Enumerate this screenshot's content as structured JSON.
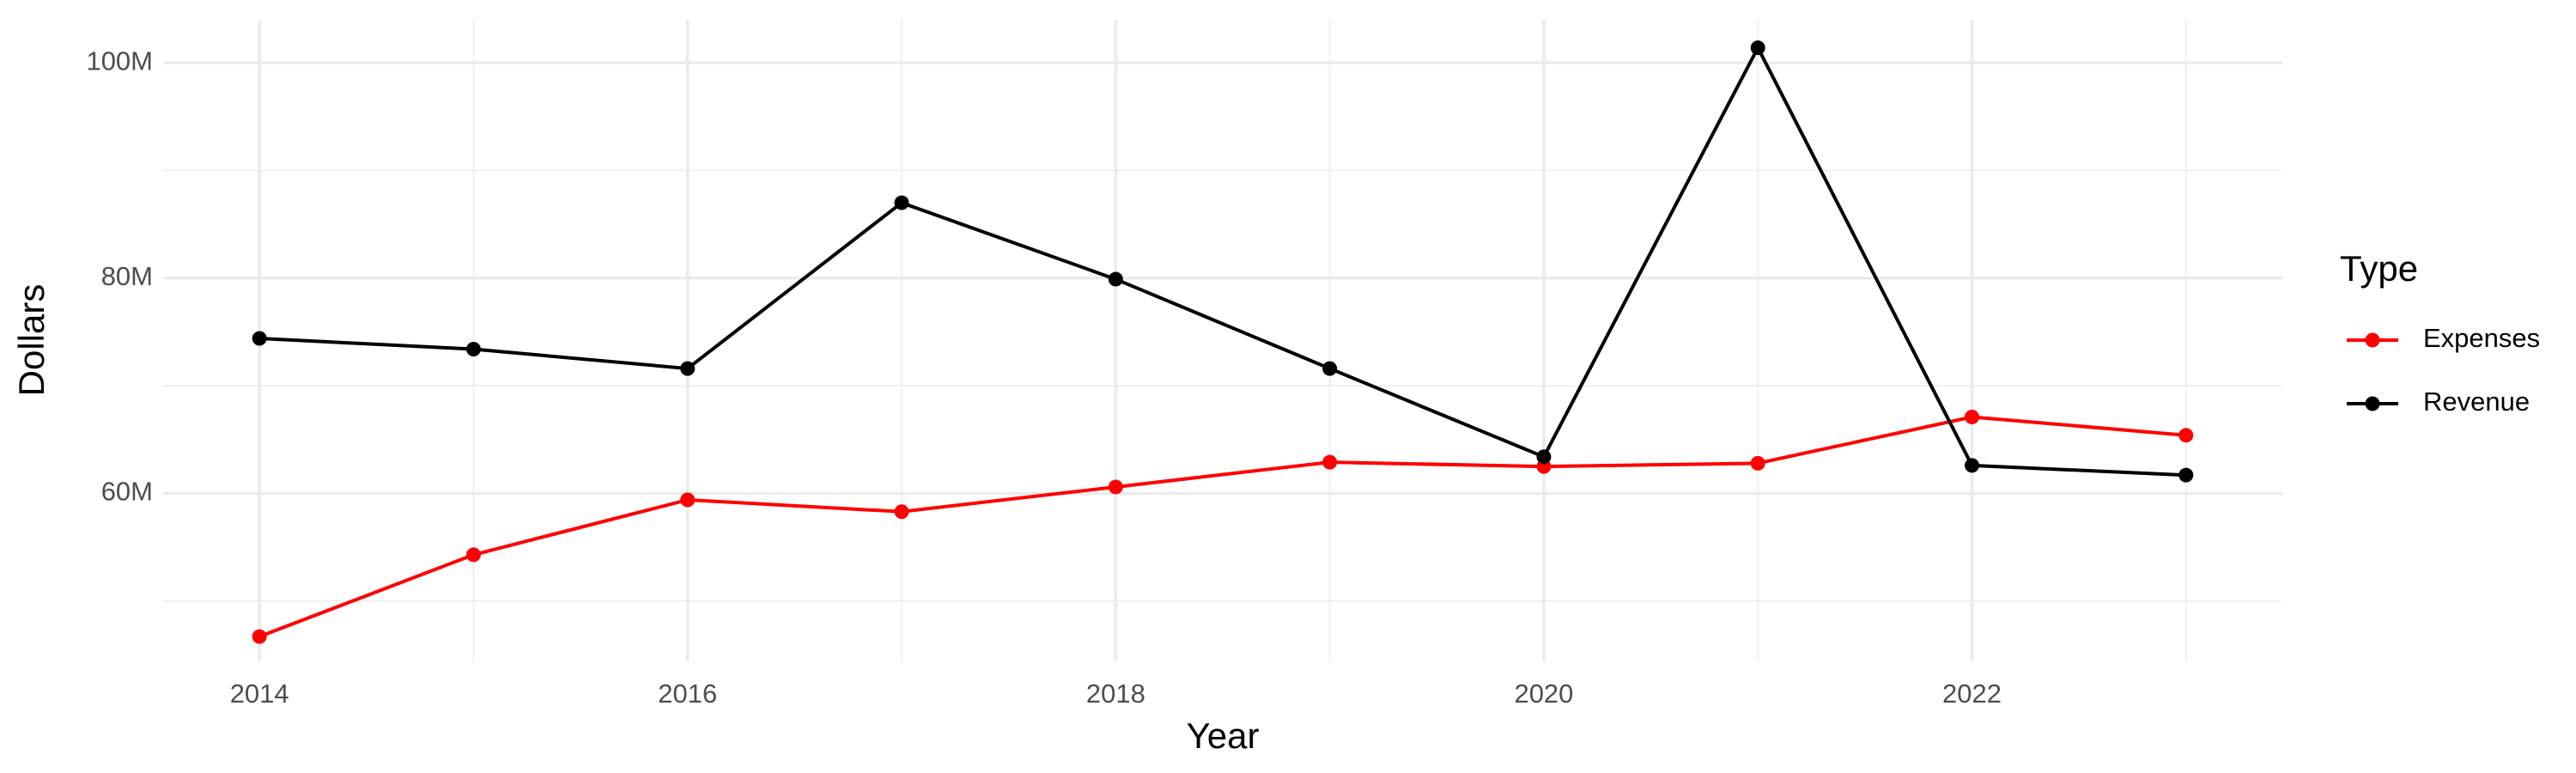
{
  "chart_data": {
    "type": "line",
    "x": [
      2014,
      2015,
      2016,
      2017,
      2018,
      2019,
      2020,
      2021,
      2022,
      2023
    ],
    "series": [
      {
        "name": "Expenses",
        "color": "#ff0000",
        "values": [
          46700000,
          54300000,
          59400000,
          58300000,
          60600000,
          62900000,
          62500000,
          62800000,
          67100000,
          65400000
        ]
      },
      {
        "name": "Revenue",
        "color": "#000000",
        "values": [
          74400000,
          73400000,
          71600000,
          87000000,
          79900000,
          71600000,
          63400000,
          101400000,
          62600000,
          61700000
        ]
      }
    ],
    "xlabel": "Year",
    "ylabel": "Dollars",
    "legend_title": "Type",
    "legend_position": "right",
    "xlim": [
      2013.55,
      2023.45
    ],
    "xticks": [
      2014,
      2016,
      2018,
      2020,
      2022
    ],
    "ylim": [
      44400000,
      104000000
    ],
    "yticks": [
      {
        "value": 60000000,
        "label": "60M"
      },
      {
        "value": 80000000,
        "label": "80M"
      },
      {
        "value": 100000000,
        "label": "100M"
      }
    ],
    "grid": true
  }
}
